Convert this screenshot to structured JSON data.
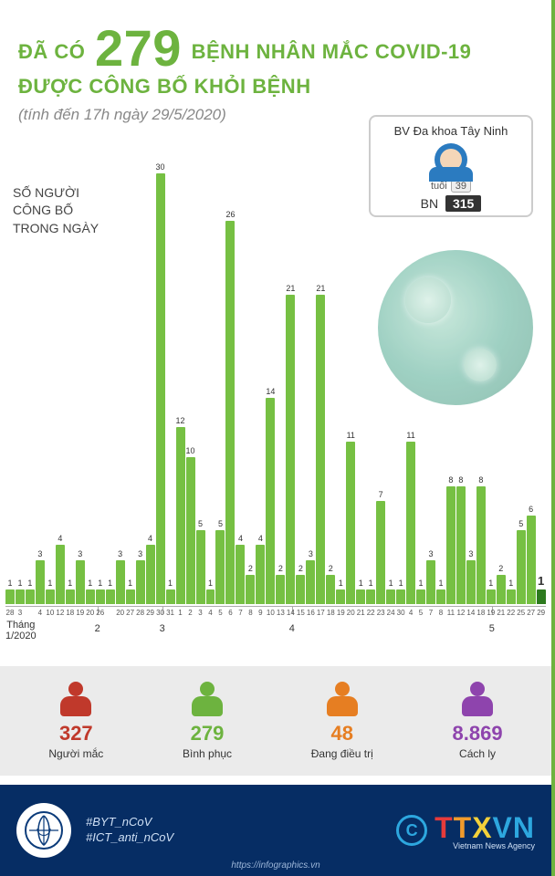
{
  "title": {
    "pre": "ĐÃ CÓ",
    "number": "279",
    "post1": "BỆNH NHÂN MẮC COVID-19",
    "line2": "ĐƯỢC CÔNG BỐ KHỎI BỆNH"
  },
  "subtitle": "(tính đến 17h ngày 29/5/2020)",
  "y_label_l1": "SỐ NGƯỜI",
  "y_label_l2": "CÔNG BỐ",
  "y_label_l3": "TRONG NGÀY",
  "patient_box": {
    "hospital": "BV Đa khoa Tây Ninh",
    "age_label": "tuổi",
    "age": "39",
    "bn_label": "BN",
    "bn_number": "315"
  },
  "chart": {
    "type": "bar",
    "max_value": 30,
    "bar_color": "#76c043",
    "highlight_color": "#2d7a1f",
    "background": "#ffffff",
    "val_fontsize": 9,
    "day_fontsize": 8,
    "bars": [
      {
        "day": "28",
        "val": 1
      },
      {
        "day": "3",
        "val": 1
      },
      {
        "day": "",
        "val": 1
      },
      {
        "day": "4",
        "val": 3
      },
      {
        "day": "10",
        "val": 1
      },
      {
        "day": "12",
        "val": 4
      },
      {
        "day": "18",
        "val": 1
      },
      {
        "day": "19",
        "val": 3
      },
      {
        "day": "20",
        "val": 1
      },
      {
        "day": "26",
        "val": 1
      },
      {
        "day": "",
        "val": 1
      },
      {
        "day": "20",
        "val": 3
      },
      {
        "day": "27",
        "val": 1
      },
      {
        "day": "28",
        "val": 3
      },
      {
        "day": "29",
        "val": 4
      },
      {
        "day": "30",
        "val": 30
      },
      {
        "day": "31",
        "val": 1
      },
      {
        "day": "1",
        "val": 12
      },
      {
        "day": "2",
        "val": 10
      },
      {
        "day": "3",
        "val": 5
      },
      {
        "day": "4",
        "val": 1
      },
      {
        "day": "5",
        "val": 5
      },
      {
        "day": "6",
        "val": 26
      },
      {
        "day": "7",
        "val": 4
      },
      {
        "day": "8",
        "val": 2
      },
      {
        "day": "9",
        "val": 4
      },
      {
        "day": "10",
        "val": 14
      },
      {
        "day": "13",
        "val": 2
      },
      {
        "day": "14",
        "val": 21
      },
      {
        "day": "15",
        "val": 2
      },
      {
        "day": "16",
        "val": 3
      },
      {
        "day": "17",
        "val": 21
      },
      {
        "day": "18",
        "val": 2
      },
      {
        "day": "19",
        "val": 1
      },
      {
        "day": "20",
        "val": 11
      },
      {
        "day": "21",
        "val": 1
      },
      {
        "day": "22",
        "val": 1
      },
      {
        "day": "23",
        "val": 7
      },
      {
        "day": "24",
        "val": 1
      },
      {
        "day": "30",
        "val": 1
      },
      {
        "day": "4",
        "val": 11
      },
      {
        "day": "5",
        "val": 1
      },
      {
        "day": "7",
        "val": 3
      },
      {
        "day": "8",
        "val": 1
      },
      {
        "day": "11",
        "val": 8
      },
      {
        "day": "12",
        "val": 8
      },
      {
        "day": "14",
        "val": 3
      },
      {
        "day": "18",
        "val": 8
      },
      {
        "day": "19",
        "val": 1
      },
      {
        "day": "21",
        "val": 2
      },
      {
        "day": "22",
        "val": 1
      },
      {
        "day": "25",
        "val": 5
      },
      {
        "day": "27",
        "val": 6
      },
      {
        "day": "29",
        "val": 1,
        "highlight": true
      }
    ],
    "months": [
      {
        "label": "Tháng\n1/2020",
        "pos_pct": 1,
        "tick": false
      },
      {
        "label": "2",
        "pos_pct": 17,
        "tick": true
      },
      {
        "label": "3",
        "pos_pct": 29,
        "tick": true
      },
      {
        "label": "4",
        "pos_pct": 53,
        "tick": true
      },
      {
        "label": "5",
        "pos_pct": 90,
        "tick": true
      }
    ]
  },
  "stats": [
    {
      "value": "327",
      "label": "Người mắc",
      "color": "#c0392b"
    },
    {
      "value": "279",
      "label": "Bình phục",
      "color": "#6db33f"
    },
    {
      "value": "48",
      "label": "Đang điều trị",
      "color": "#e67e22"
    },
    {
      "value": "8.869",
      "label": "Cách ly",
      "color": "#8e44ad"
    }
  ],
  "footer": {
    "hashtag1": "#BYT_nCoV",
    "hashtag2": "#ICT_anti_nCoV",
    "c": "C",
    "brand": "TTXVN",
    "brand_sub": "Vietnam News Agency",
    "url": "https://infographics.vn"
  }
}
